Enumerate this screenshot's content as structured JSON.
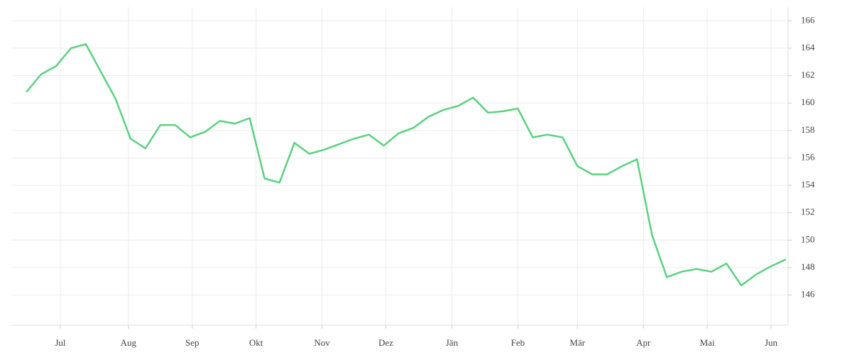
{
  "chart_data": {
    "type": "line",
    "x": [
      0,
      7,
      14,
      21,
      28,
      35,
      42,
      49,
      56,
      63,
      70,
      77,
      84,
      91,
      98,
      105,
      112,
      119,
      126,
      133,
      140,
      147,
      154,
      161,
      168,
      175,
      182,
      189,
      196,
      203,
      210,
      217,
      224,
      231,
      238,
      245,
      252,
      259,
      266,
      273,
      280,
      287,
      294,
      301,
      308,
      315,
      322,
      329,
      336,
      343,
      350,
      357
    ],
    "series": [
      {
        "color": "#5ad27e",
        "values": [
          160.8,
          162.1,
          162.7,
          164.0,
          164.3,
          162.3,
          160.3,
          157.4,
          156.7,
          158.4,
          158.4,
          157.5,
          157.9,
          158.7,
          158.5,
          158.9,
          154.5,
          154.2,
          157.1,
          156.3,
          156.6,
          157.0,
          157.4,
          157.7,
          156.9,
          157.8,
          158.2,
          159.0,
          159.5,
          159.8,
          160.4,
          159.3,
          159.4,
          159.6,
          157.5,
          157.7,
          157.5,
          155.4,
          154.8,
          154.8,
          155.4,
          155.9,
          150.4,
          147.3,
          147.7,
          147.9,
          147.7,
          148.3,
          146.7,
          147.5,
          148.1,
          148.6
        ]
      }
    ],
    "xlim": [
      -7,
      358
    ],
    "xticks": [
      {
        "value": 16,
        "label": "Jul"
      },
      {
        "value": 48,
        "label": "Aug"
      },
      {
        "value": 78,
        "label": "Sep"
      },
      {
        "value": 108,
        "label": "Okt"
      },
      {
        "value": 139,
        "label": "Nov"
      },
      {
        "value": 169,
        "label": "Dez"
      },
      {
        "value": 200,
        "label": "Jän"
      },
      {
        "value": 231,
        "label": "Feb"
      },
      {
        "value": 259,
        "label": "Mär"
      },
      {
        "value": 290,
        "label": "Apr"
      },
      {
        "value": 320,
        "label": "Mai"
      },
      {
        "value": 350,
        "label": "Jun"
      }
    ],
    "ylim": [
      143.8,
      167
    ],
    "yticks": [
      146,
      148,
      150,
      152,
      154,
      156,
      158,
      160,
      162,
      164,
      166
    ],
    "grid": true
  }
}
